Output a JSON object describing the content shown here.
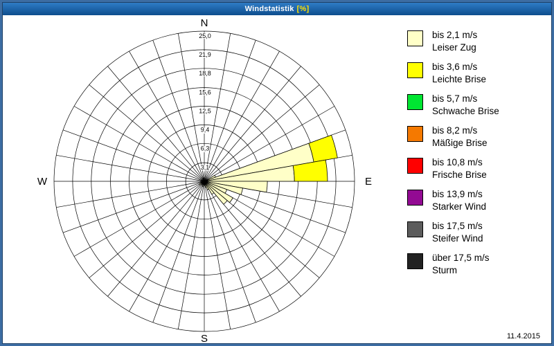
{
  "window": {
    "title": "Windstatistik",
    "title_unit": "[%]"
  },
  "footer": {
    "date": "11.4.2015"
  },
  "chart_data": {
    "type": "windrose",
    "title": "Windstatistik [%]",
    "units": "%",
    "legend_position": "right",
    "grid": true,
    "compass": {
      "north": "N",
      "east": "E",
      "south": "S",
      "west": "W"
    },
    "rlim": [
      0,
      25
    ],
    "ring_values": [
      3.1,
      6.3,
      9.4,
      12.5,
      15.6,
      18.8,
      21.9,
      25.0
    ],
    "ring_labels": [
      "3,1",
      "6,3",
      "9,4",
      "12,5",
      "15,6",
      "18,8",
      "21,9",
      "25,0"
    ],
    "sector_width_deg": 10,
    "spoke_step_deg": 10,
    "bins": [
      {
        "speed_label": "bis 2,1 m/s",
        "desc": "Leiser Zug",
        "color": "#FFFFC8"
      },
      {
        "speed_label": "bis 3,6 m/s",
        "desc": "Leichte Brise",
        "color": "#FFFF00"
      },
      {
        "speed_label": "bis 5,7 m/s",
        "desc": "Schwache Brise",
        "color": "#00E632"
      },
      {
        "speed_label": "bis 8,2 m/s",
        "desc": "Mäßige Brise",
        "color": "#F57900"
      },
      {
        "speed_label": "bis 10,8 m/s",
        "desc": "Frische Brise",
        "color": "#FF0000"
      },
      {
        "speed_label": "bis 13,9 m/s",
        "desc": "Starker Wind",
        "color": "#930A93"
      },
      {
        "speed_label": "bis 17,5 m/s",
        "desc": "Steifer Wind",
        "color": "#5C5C5C"
      },
      {
        "speed_label": "über 17,5 m/s",
        "desc": "Sturm",
        "color": "#222222"
      }
    ],
    "sectors": [
      {
        "dir": 65,
        "values": [
          2.0,
          0
        ]
      },
      {
        "dir": 75,
        "values": [
          18.5,
          4.0
        ]
      },
      {
        "dir": 85,
        "values": [
          15.0,
          5.5
        ]
      },
      {
        "dir": 95,
        "values": [
          10.5,
          0
        ]
      },
      {
        "dir": 105,
        "values": [
          6.5,
          0
        ]
      },
      {
        "dir": 115,
        "values": [
          4.0,
          0
        ]
      },
      {
        "dir": 125,
        "values": [
          5.5,
          0
        ]
      },
      {
        "dir": 135,
        "values": [
          5.0,
          0
        ]
      },
      {
        "dir": 145,
        "values": [
          2.5,
          0
        ]
      },
      {
        "dir": 155,
        "values": [
          1.5,
          0
        ]
      },
      {
        "dir": 165,
        "values": [
          1.0,
          0
        ]
      },
      {
        "dir": 175,
        "values": [
          0.7,
          0
        ]
      },
      {
        "dir": 195,
        "values": [
          0.9,
          0
        ]
      },
      {
        "dir": 215,
        "values": [
          0.7,
          0
        ]
      },
      {
        "dir": 235,
        "values": [
          1.0,
          0
        ]
      },
      {
        "dir": 255,
        "values": [
          0.6,
          0
        ]
      },
      {
        "dir": 285,
        "values": [
          0.5,
          0
        ]
      },
      {
        "dir": 345,
        "values": [
          0.6,
          0
        ]
      }
    ]
  }
}
